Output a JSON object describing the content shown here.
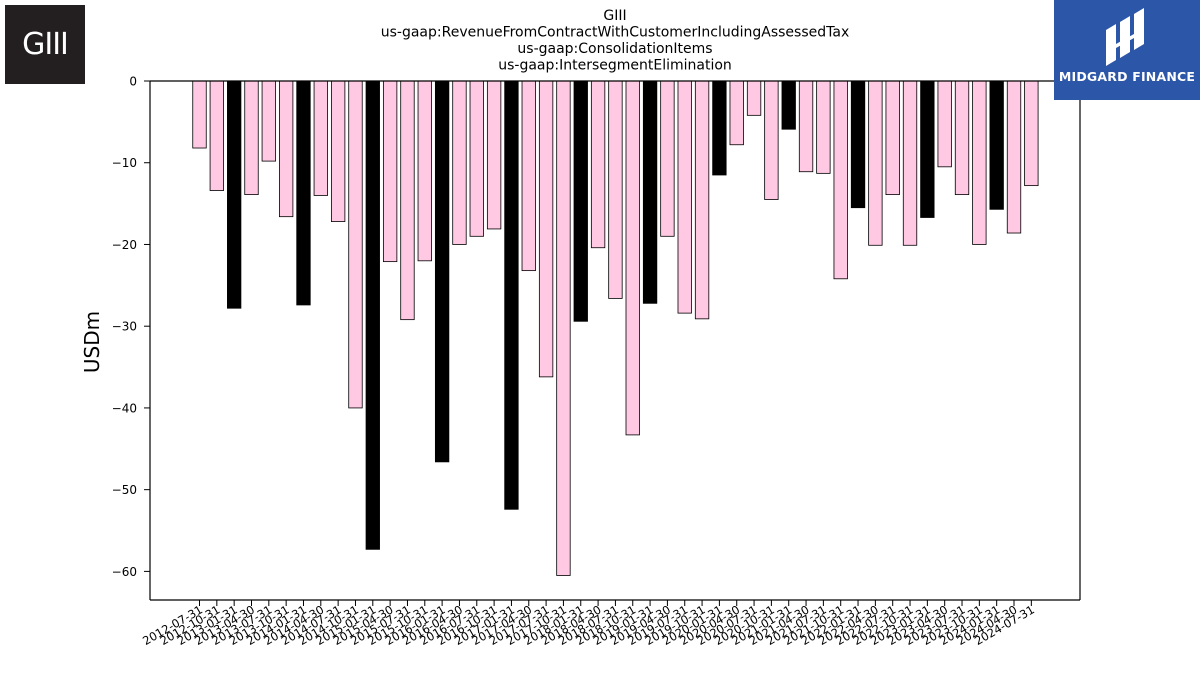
{
  "logos": {
    "left_text": "GIII",
    "right_text": "MIDGARD FINANCE"
  },
  "chart_data": {
    "type": "bar",
    "title_lines": [
      "GIII",
      "us-gaap:RevenueFromContractWithCustomerIncludingAssessedTax",
      "us-gaap:ConsolidationItems",
      "us-gaap:IntersegmentElimination"
    ],
    "xlabel": "",
    "ylabel": "USDm",
    "ylim": [
      -63.5,
      0
    ],
    "yticks": [
      0,
      -10,
      -20,
      -30,
      -40,
      -50,
      -60
    ],
    "grid": false,
    "colors": {
      "quarter": "#ffc9e3",
      "annual": "#000000"
    },
    "categories": [
      "2012-07-31",
      "2012-10-31",
      "2013-01-31",
      "2013-04-30",
      "2013-07-31",
      "2013-10-31",
      "2014-01-31",
      "2014-04-30",
      "2014-07-31",
      "2014-10-31",
      "2015-01-31",
      "2015-04-30",
      "2015-07-31",
      "2015-10-31",
      "2016-01-31",
      "2016-04-30",
      "2016-07-31",
      "2016-10-31",
      "2017-01-31",
      "2017-04-30",
      "2017-07-31",
      "2017-10-31",
      "2018-01-31",
      "2018-04-30",
      "2018-07-31",
      "2018-10-31",
      "2019-01-31",
      "2019-04-30",
      "2019-07-31",
      "2019-10-31",
      "2020-01-31",
      "2020-04-30",
      "2020-07-31",
      "2020-10-31",
      "2021-01-31",
      "2021-04-30",
      "2021-07-31",
      "2021-10-31",
      "2022-01-31",
      "2022-04-30",
      "2022-07-31",
      "2022-10-31",
      "2023-01-31",
      "2023-04-30",
      "2023-07-31",
      "2023-10-31",
      "2024-01-31",
      "2024-04-30",
      "2024-07-31"
    ],
    "values": [
      -8.2,
      -13.4,
      -27.8,
      -13.9,
      -9.8,
      -16.6,
      -27.4,
      -14.0,
      -17.2,
      -40.0,
      -57.3,
      -22.1,
      -29.2,
      -22.0,
      -46.6,
      -20.0,
      -19.0,
      -18.1,
      -52.4,
      -23.2,
      -36.2,
      -60.5,
      -29.4,
      -20.4,
      -26.6,
      -43.3,
      -27.2,
      -19.0,
      -28.4,
      -29.1,
      -11.5,
      -7.8,
      -4.2,
      -14.5,
      -5.9,
      -11.1,
      -11.3,
      -24.2,
      -15.5,
      -20.1,
      -13.9,
      -20.1,
      -16.7,
      -10.5,
      -13.9,
      -20.0,
      -15.7,
      -18.6,
      -12.8
    ],
    "annual": [
      false,
      false,
      true,
      false,
      false,
      false,
      true,
      false,
      false,
      false,
      true,
      false,
      false,
      false,
      true,
      false,
      false,
      false,
      true,
      false,
      false,
      false,
      true,
      false,
      false,
      false,
      true,
      false,
      false,
      false,
      true,
      false,
      false,
      false,
      true,
      false,
      false,
      false,
      true,
      false,
      false,
      false,
      true,
      false,
      false,
      false,
      true,
      false,
      false
    ]
  }
}
